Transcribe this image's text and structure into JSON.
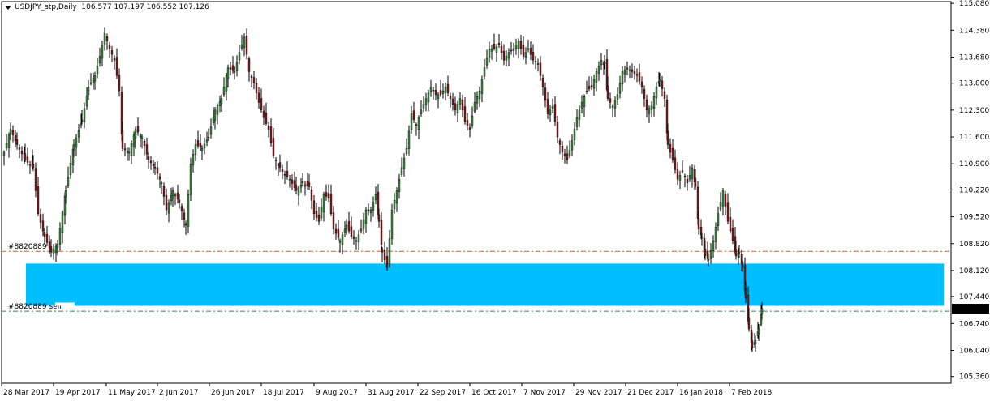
{
  "chart": {
    "title_triangle_icon": "chevron-down-icon",
    "symbol_label": "USDJPY_stp,Daily",
    "ohlc_label": "106.577 107.197 106.552 107.126",
    "current_price_label": "107.126",
    "current_price": 107.126
  },
  "chart_data": {
    "type": "candlestick",
    "title": "USDJPY_stp,Daily",
    "y_axis": {
      "range": [
        105.185,
        115.125
      ],
      "ticks": [
        "115.080",
        "114.380",
        "113.680",
        "113.000",
        "112.300",
        "111.600",
        "110.900",
        "110.220",
        "109.520",
        "108.820",
        "108.120",
        "107.440",
        "106.740",
        "106.040",
        "105.360"
      ]
    },
    "x_axis": {
      "ticks": [
        "28 Mar 2017",
        "19 Apr 2017",
        "11 May 2017",
        "2 Jun 2017",
        "26 Jun 2017",
        "18 Jul 2017",
        "9 Aug 2017",
        "31 Aug 2017",
        "22 Sep 2017",
        "16 Oct 2017",
        "7 Nov 2017",
        "29 Nov 2017",
        "21 Dec 2017",
        "16 Jan 2018",
        "7 Feb 2018"
      ]
    },
    "orders": [
      {
        "label": "#8820889",
        "price": 108.62,
        "color": "#e05a2b"
      },
      {
        "label": "#8820889 sell",
        "price": 107.06,
        "color": "#2e8b57"
      }
    ],
    "zone": {
      "from": 107.2,
      "to": 108.3,
      "color": "#00bfff"
    },
    "bull_color": "#3a8a3a",
    "bear_color": "#8b1a1a"
  }
}
